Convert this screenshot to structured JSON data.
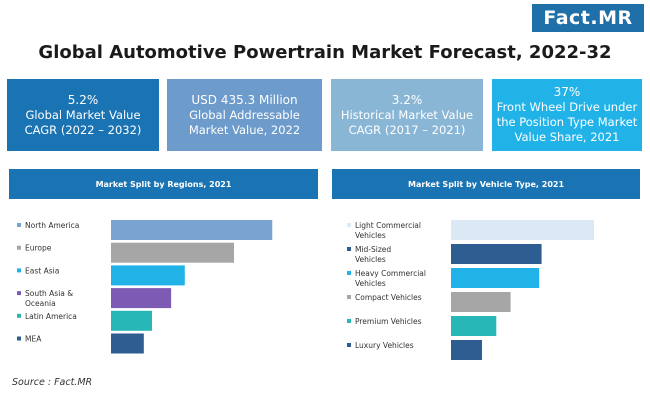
{
  "brand": {
    "logo_text": "Fact.MR",
    "color": "#1f6fa8"
  },
  "title": "Global Automotive Powertrain Market Forecast, 2022-32",
  "kpis": [
    {
      "value": "5.2%",
      "label": "Global Market Value CAGR (2022 – 2032)",
      "color": "#1a73b3"
    },
    {
      "value": "USD  435.3 Million",
      "label": "Global Addressable Market Value, 2022",
      "color": "#6c9bcc"
    },
    {
      "value": "3.2%",
      "label": "Historical Market Value CAGR (2017 – 2021)",
      "color": "#8ab6d6"
    },
    {
      "value": "37%",
      "label": "Front Wheel Drive under the Position Type Market Value Share, 2021",
      "color": "#21b3e8"
    }
  ],
  "chart_data": [
    {
      "type": "bar",
      "orientation": "horizontal",
      "title": "Market Split by Regions, 2021",
      "categories": [
        "North America",
        "Europe",
        "East Asia",
        "South Asia & Oceania",
        "Latin America",
        "MEA"
      ],
      "values": [
        29.5,
        22.5,
        13.5,
        11,
        7.5,
        6
      ],
      "colors": [
        "#7aa3d2",
        "#a6a6a6",
        "#21b3e8",
        "#7d5bb5",
        "#27b7b7",
        "#2e5d92"
      ],
      "xlim": [
        0,
        30
      ],
      "grid": false,
      "legend": "none"
    },
    {
      "type": "bar",
      "orientation": "horizontal",
      "title": "Market Split by Vehicle Type, 2021",
      "categories": [
        "Light Commercial Vehicles",
        "Mid-Sized Vehicles",
        "Heavy Commercial Vehicles",
        "Compact Vehicles",
        "Premium Vehicles",
        "Luxury Vehicles"
      ],
      "values": [
        30,
        19,
        18.5,
        12.5,
        9.5,
        6.5
      ],
      "colors": [
        "#dbe9f6",
        "#2e5d92",
        "#21b3e8",
        "#a6a6a6",
        "#27b7b7",
        "#2e5d92"
      ],
      "xlim": [
        0,
        30
      ],
      "grid": false,
      "legend": "none"
    }
  ],
  "source": "Source : Fact.MR"
}
